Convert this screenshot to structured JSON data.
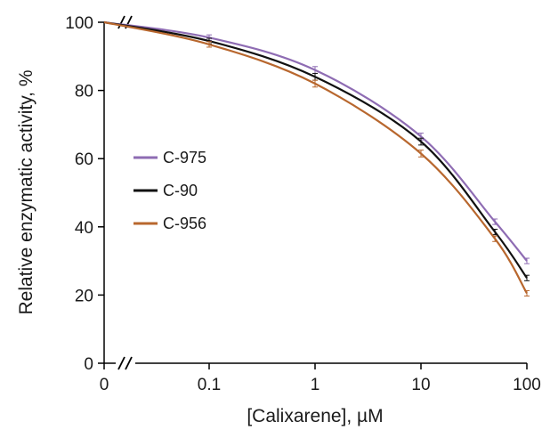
{
  "chart_data": {
    "type": "line",
    "title": "",
    "xlabel": "[Calixarene], µM",
    "ylabel": "Relative enzymatic activity, %",
    "x_scale": "log (with axis break after 0)",
    "xticks": [
      "0",
      "0.1",
      "1",
      "10",
      "100"
    ],
    "yticks": [
      "0",
      "20",
      "40",
      "60",
      "80",
      "100"
    ],
    "ylim": [
      0,
      100
    ],
    "grid": false,
    "legend_position": "center-left",
    "x": [
      0,
      0.1,
      1,
      10,
      50,
      100
    ],
    "series": [
      {
        "name": "C-975",
        "color": "#8e6cb3",
        "values": [
          100,
          95.5,
          86,
          66.5,
          41.5,
          30
        ],
        "errors": [
          0.5,
          0.8,
          1.0,
          1.0,
          0.8,
          0.8
        ]
      },
      {
        "name": "C-90",
        "color": "#111111",
        "values": [
          100,
          94.5,
          84,
          65,
          38.5,
          25
        ],
        "errors": [
          0.5,
          0.8,
          1.0,
          1.0,
          0.8,
          0.8
        ]
      },
      {
        "name": "C-956",
        "color": "#b8672e",
        "values": [
          100,
          93.5,
          82,
          61.5,
          36.5,
          20.5
        ],
        "errors": [
          0.5,
          0.8,
          1.0,
          1.0,
          0.8,
          0.8
        ]
      }
    ]
  }
}
